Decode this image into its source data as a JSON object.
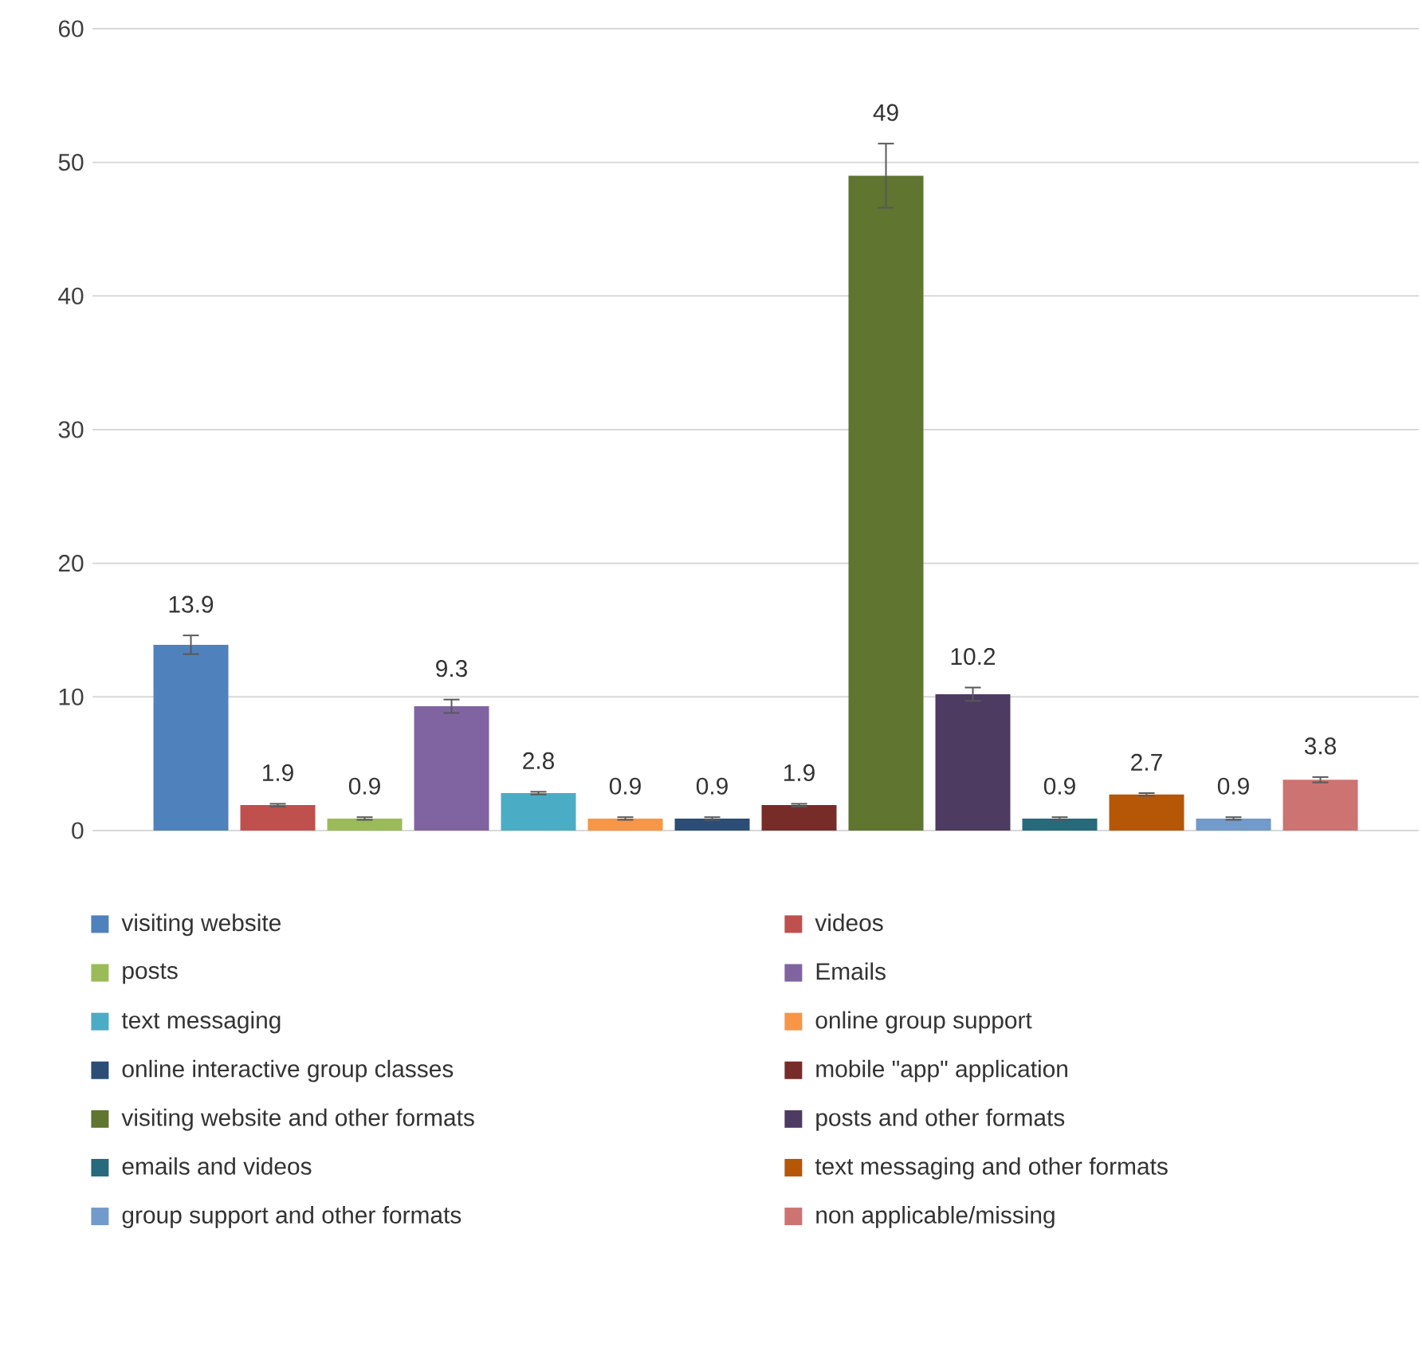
{
  "chart_data": {
    "type": "bar",
    "categories": [
      null
    ],
    "series": [
      {
        "name": "visiting website",
        "color": "#4f81bd",
        "values": [
          13.9
        ],
        "errors": [
          0.7
        ]
      },
      {
        "name": "videos",
        "color": "#c0504d",
        "values": [
          1.9
        ],
        "errors": [
          0.1
        ]
      },
      {
        "name": "posts",
        "color": "#9bbb59",
        "values": [
          0.9
        ],
        "errors": [
          0.1
        ]
      },
      {
        "name": "Emails",
        "color": "#8064a2",
        "values": [
          9.3
        ],
        "errors": [
          0.5
        ]
      },
      {
        "name": "text messaging",
        "color": "#4bacc6",
        "values": [
          2.8
        ],
        "errors": [
          0.1
        ]
      },
      {
        "name": "online group support",
        "color": "#f79646",
        "values": [
          0.9
        ],
        "errors": [
          0.1
        ]
      },
      {
        "name": "online interactive group classes",
        "color": "#2c4d75",
        "values": [
          0.9
        ],
        "errors": [
          0.1
        ]
      },
      {
        "name": "mobile \"app\" application",
        "color": "#772c2a",
        "values": [
          1.9
        ],
        "errors": [
          0.1
        ]
      },
      {
        "name": "visiting website and other formats",
        "color": "#5f7530",
        "values": [
          49
        ],
        "errors": [
          2.4
        ]
      },
      {
        "name": "posts and other formats",
        "color": "#4d3b62",
        "values": [
          10.2
        ],
        "errors": [
          0.5
        ]
      },
      {
        "name": "emails and videos",
        "color": "#276a7c",
        "values": [
          0.9
        ],
        "errors": [
          0.1
        ]
      },
      {
        "name": "text messaging and other formats",
        "color": "#b65708",
        "values": [
          2.7
        ],
        "errors": [
          0.1
        ]
      },
      {
        "name": "group support and other formats",
        "color": "#729aca",
        "values": [
          0.9
        ],
        "errors": [
          0.1
        ]
      },
      {
        "name": "non applicable/missing",
        "color": "#cd7371",
        "values": [
          3.8
        ],
        "errors": [
          0.2
        ]
      }
    ],
    "ylim": [
      0,
      60
    ],
    "yticks": [
      0,
      10,
      20,
      30,
      40,
      50,
      60
    ],
    "grid": "y",
    "data_labels": true,
    "legend": "bottom"
  }
}
